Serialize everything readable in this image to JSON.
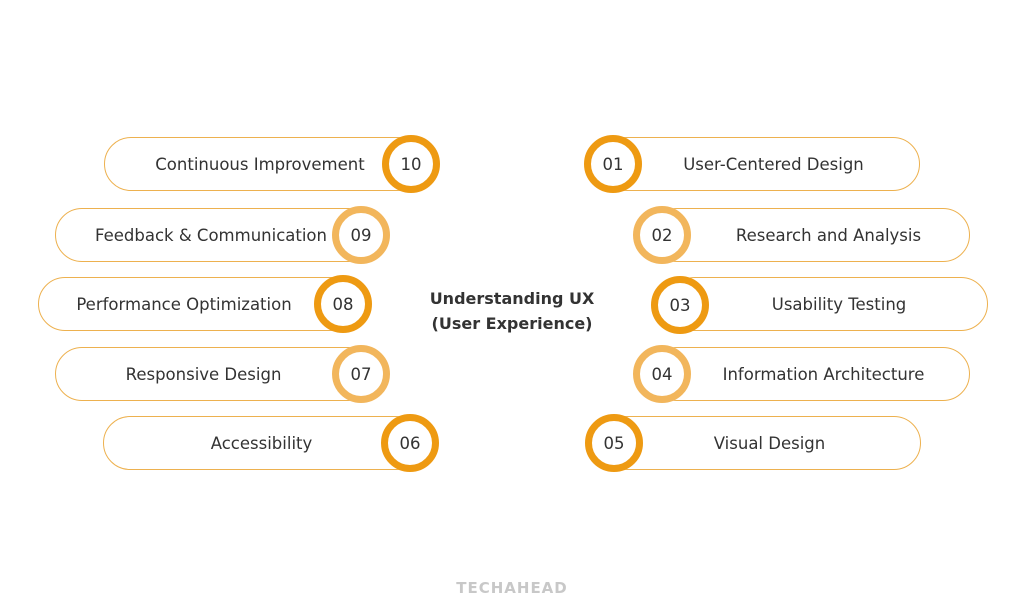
{
  "title": {
    "line1": "Understanding UX",
    "line2": "(User Experience)"
  },
  "colors": {
    "dark_ring": "#EE9A12",
    "light_ring": "#F2B65C",
    "pill_border": "#EDB14F"
  },
  "items": [
    {
      "number": "01",
      "label": "User-Centered Design",
      "ring": "dark"
    },
    {
      "number": "02",
      "label": "Research and Analysis",
      "ring": "light"
    },
    {
      "number": "03",
      "label": "Usability Testing",
      "ring": "dark"
    },
    {
      "number": "04",
      "label": "Information Architecture",
      "ring": "light"
    },
    {
      "number": "05",
      "label": "Visual Design",
      "ring": "dark"
    },
    {
      "number": "06",
      "label": "Accessibility",
      "ring": "dark"
    },
    {
      "number": "07",
      "label": "Responsive Design",
      "ring": "light"
    },
    {
      "number": "08",
      "label": "Performance Optimization",
      "ring": "dark"
    },
    {
      "number": "09",
      "label": "Feedback & Communication",
      "ring": "light"
    },
    {
      "number": "10",
      "label": "Continuous Improvement",
      "ring": "dark"
    }
  ],
  "footer": {
    "logo": "TECHAHEAD"
  }
}
